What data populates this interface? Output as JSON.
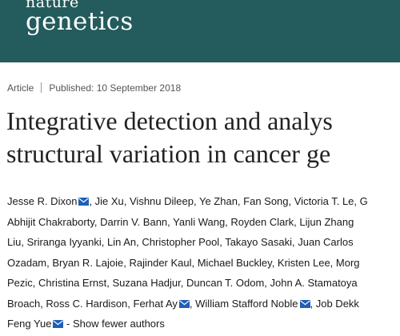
{
  "journal": {
    "logo_line1": "nature",
    "logo_line2": "genetics",
    "bg_color": "#245b5d"
  },
  "article": {
    "type": "Article",
    "published": "Published: 10 September 2018",
    "title_line1": "Integrative detection and analys",
    "title_line2": "structural variation in cancer ge"
  },
  "authors": {
    "lines": [
      [
        {
          "text": "Jesse R. Dixon",
          "mail": true
        },
        {
          "text": ", Jie Xu, Vishnu Dileep, Ye Zhan, Fan Song, Victoria T. Le, G"
        }
      ],
      [
        {
          "text": "Abhijit Chakraborty, Darrin V. Bann, Yanli Wang, Royden Clark, Lijun Zhang"
        }
      ],
      [
        {
          "text": "Liu, Sriranga Iyyanki, Lin An, Christopher Pool, Takayo Sasaki, Juan Carlos"
        }
      ],
      [
        {
          "text": "Ozadam, Bryan R. Lajoie, Rajinder Kaul, Michael Buckley, Kristen Lee, Morg"
        }
      ],
      [
        {
          "text": "Pezic, Christina Ernst, Suzana Hadjur, Duncan T. Odom, John A. Stamatoya"
        }
      ],
      [
        {
          "text": "Broach, Ross C. Hardison, Ferhat Ay",
          "mail": true
        },
        {
          "text": ", William Stafford Noble",
          "mail": true
        },
        {
          "text": ", Job Dekk"
        }
      ],
      [
        {
          "text": "Feng Yue",
          "mail": true
        },
        {
          "text": " - Show fewer authors",
          "link": true
        }
      ]
    ]
  },
  "icons": {
    "mail": "envelope-icon"
  },
  "colors": {
    "mail_icon": "#1f5fb6",
    "text": "#1a1a1a",
    "meta_text": "#555555"
  }
}
